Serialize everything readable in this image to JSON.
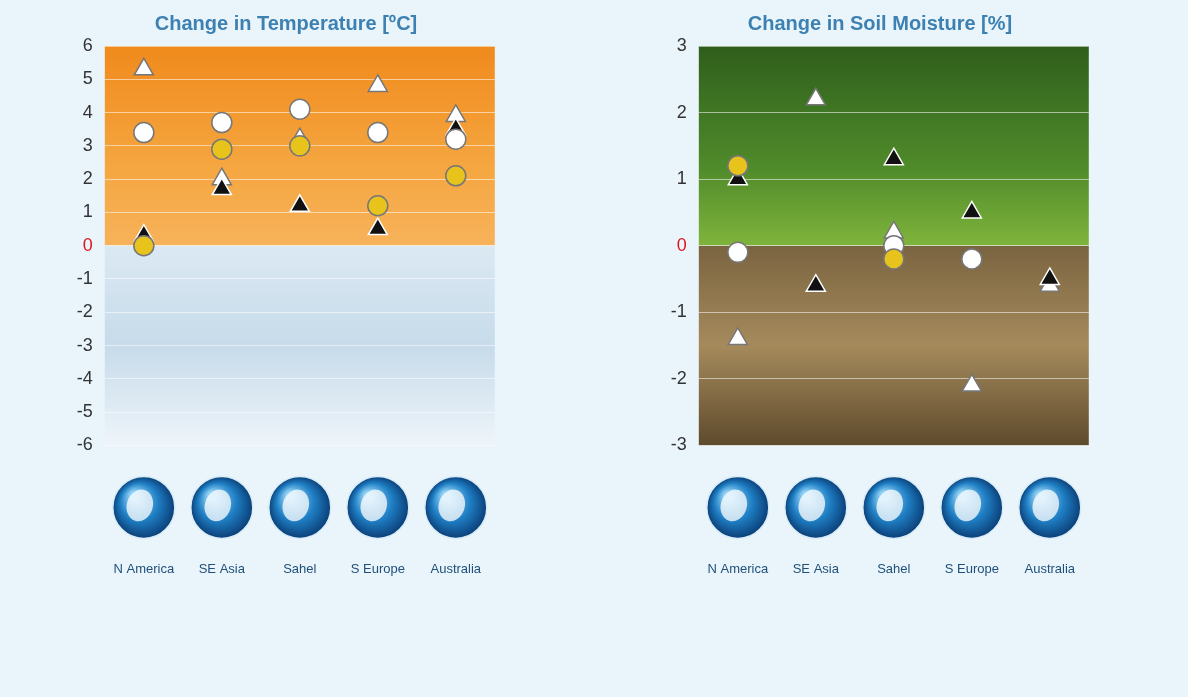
{
  "chart_data": [
    {
      "type": "scatter",
      "title": "Change in Temperature [ºC]",
      "categories": [
        "N America",
        "SE Asia",
        "Sahel",
        "S Europe",
        "Australia"
      ],
      "ylim": [
        -6,
        6
      ],
      "yticks": [
        -6,
        -5,
        -4,
        -3,
        -2,
        -1,
        0,
        1,
        2,
        3,
        4,
        5,
        6
      ],
      "grid": true,
      "series": [
        {
          "color": "#e8c31c",
          "marker": "circle",
          "values": [
            0,
            2.9,
            3.0,
            1.2,
            2.1
          ]
        },
        {
          "color": "#ffffff",
          "marker": "circle",
          "values": [
            3.4,
            3.7,
            4.1,
            3.4,
            3.2
          ]
        },
        {
          "color": "#111111",
          "marker": "triangle",
          "values": [
            0.3,
            1.7,
            1.2,
            0.5,
            3.5
          ]
        },
        {
          "color": "#ffffff",
          "marker": "triangle",
          "values": [
            5.3,
            2.0,
            3.2,
            4.8,
            3.9
          ]
        }
      ]
    },
    {
      "type": "scatter",
      "title": "Change in Soil Moisture [%]",
      "categories": [
        "N America",
        "SE Asia",
        "Sahel",
        "S Europe",
        "Australia"
      ],
      "ylim": [
        -3,
        3
      ],
      "yticks": [
        -3,
        -2,
        -1,
        0,
        1,
        2,
        3
      ],
      "grid": true,
      "series": [
        {
          "color": "#e8c31c",
          "marker": "circle",
          "values": [
            1.2,
            null,
            -0.2,
            null,
            null
          ]
        },
        {
          "color": "#ffffff",
          "marker": "circle",
          "values": [
            -0.1,
            null,
            0,
            -0.2,
            null
          ]
        },
        {
          "color": "#111111",
          "marker": "triangle",
          "values": [
            1.0,
            -0.6,
            1.3,
            0.5,
            -0.5
          ]
        },
        {
          "color": "#ffffff",
          "marker": "triangle",
          "values": [
            -1.4,
            2.2,
            0.2,
            -2.1,
            -0.6
          ]
        }
      ]
    }
  ]
}
